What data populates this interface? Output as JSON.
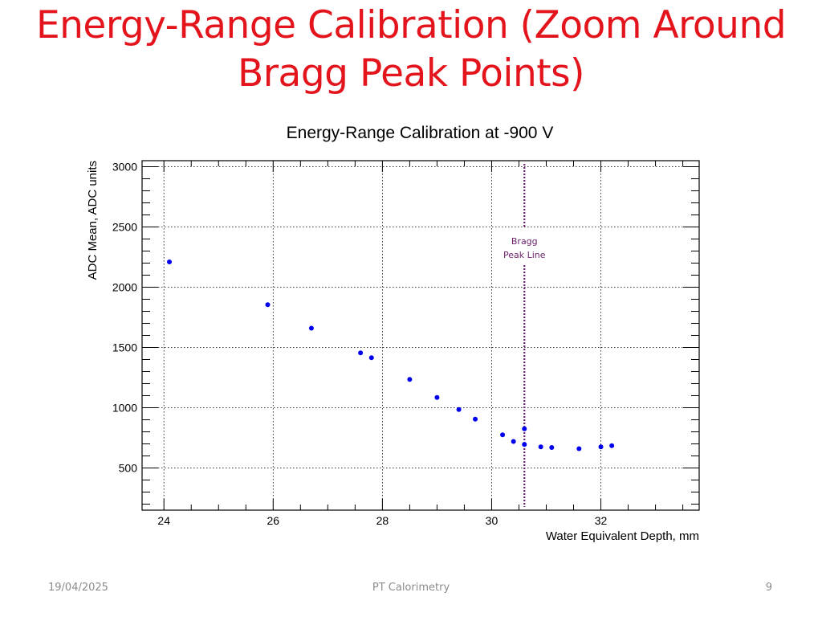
{
  "slide": {
    "title_line1": "Energy-Range Calibration (Zoom Around",
    "title_line2": "Bragg Peak Points)"
  },
  "footer": {
    "date": "19/04/2025",
    "center": "PT Calorimetry",
    "page": "9"
  },
  "chart_data": {
    "type": "scatter",
    "title": "Energy-Range Calibration at -900 V",
    "xlabel": "Water Equivalent Depth, mm",
    "ylabel": "ADC Mean, ADC units",
    "xlim": [
      23.6,
      33.8
    ],
    "ylim": [
      150,
      3050
    ],
    "xticks": [
      24,
      26,
      28,
      30,
      32
    ],
    "xtick_labels": [
      "24",
      "26",
      "28",
      "30",
      "32"
    ],
    "yticks": [
      500,
      1000,
      1500,
      2000,
      2500,
      3000
    ],
    "ytick_labels": [
      "500",
      "1000",
      "1500",
      "2000",
      "2500",
      "3000"
    ],
    "grid": true,
    "marker_color": "#0000ee",
    "points": [
      {
        "x": 24.1,
        "y": 2210
      },
      {
        "x": 25.9,
        "y": 1855
      },
      {
        "x": 26.7,
        "y": 1660
      },
      {
        "x": 27.6,
        "y": 1455
      },
      {
        "x": 27.8,
        "y": 1415
      },
      {
        "x": 28.5,
        "y": 1235
      },
      {
        "x": 29.0,
        "y": 1085
      },
      {
        "x": 29.4,
        "y": 985
      },
      {
        "x": 29.7,
        "y": 905
      },
      {
        "x": 30.2,
        "y": 775
      },
      {
        "x": 30.4,
        "y": 720
      },
      {
        "x": 30.6,
        "y": 825
      },
      {
        "x": 30.6,
        "y": 695
      },
      {
        "x": 30.9,
        "y": 675
      },
      {
        "x": 31.1,
        "y": 670
      },
      {
        "x": 31.6,
        "y": 660
      },
      {
        "x": 32.0,
        "y": 675
      },
      {
        "x": 32.2,
        "y": 685
      }
    ],
    "bragg_line": {
      "x": 30.6,
      "color": "#6b1f6b",
      "label_line1": "Bragg",
      "label_line2": "Peak Line"
    }
  }
}
